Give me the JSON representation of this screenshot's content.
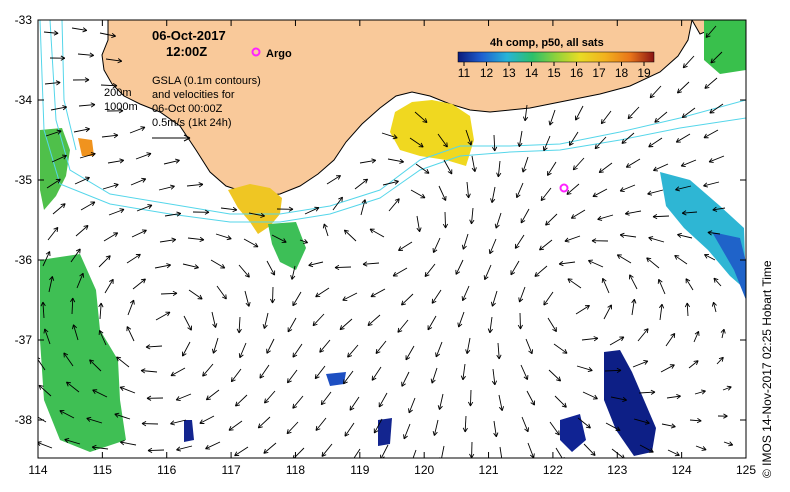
{
  "map": {
    "date_line": "06-Oct-2017",
    "time_line": "12:00Z",
    "argo_label": "Argo",
    "contour_labels": [
      "200m",
      "1000m"
    ],
    "gsla_lines": [
      "GSLA (0.1m contours)",
      "and velocities for",
      "06-Oct 00:00Z",
      "0.5m/s (1kt 24h)"
    ],
    "colorbar_title": "4h comp, p50, all sats",
    "colorbar_ticks": [
      "11",
      "12",
      "13",
      "14",
      "15",
      "16",
      "17",
      "18",
      "19"
    ],
    "colorbar_colors": [
      "#0b1a7a",
      "#1f5fd0",
      "#27b4d8",
      "#2cc06a",
      "#8fd23b",
      "#e8dc25",
      "#f2b21e",
      "#e8741a",
      "#c8301a",
      "#8a1414"
    ],
    "x_ticks": [
      "114",
      "115",
      "116",
      "117",
      "118",
      "119",
      "120",
      "121",
      "122",
      "123",
      "124",
      "125"
    ],
    "y_ticks": [
      "-33",
      "-34",
      "-35",
      "-36",
      "-37",
      "-38"
    ],
    "credit": "© IMOS 14-Nov-2017 02:25 Hobart Time",
    "colors": {
      "land": "#f9c99a",
      "contour": "#55d6ea",
      "argo": "#ff22ff"
    }
  }
}
